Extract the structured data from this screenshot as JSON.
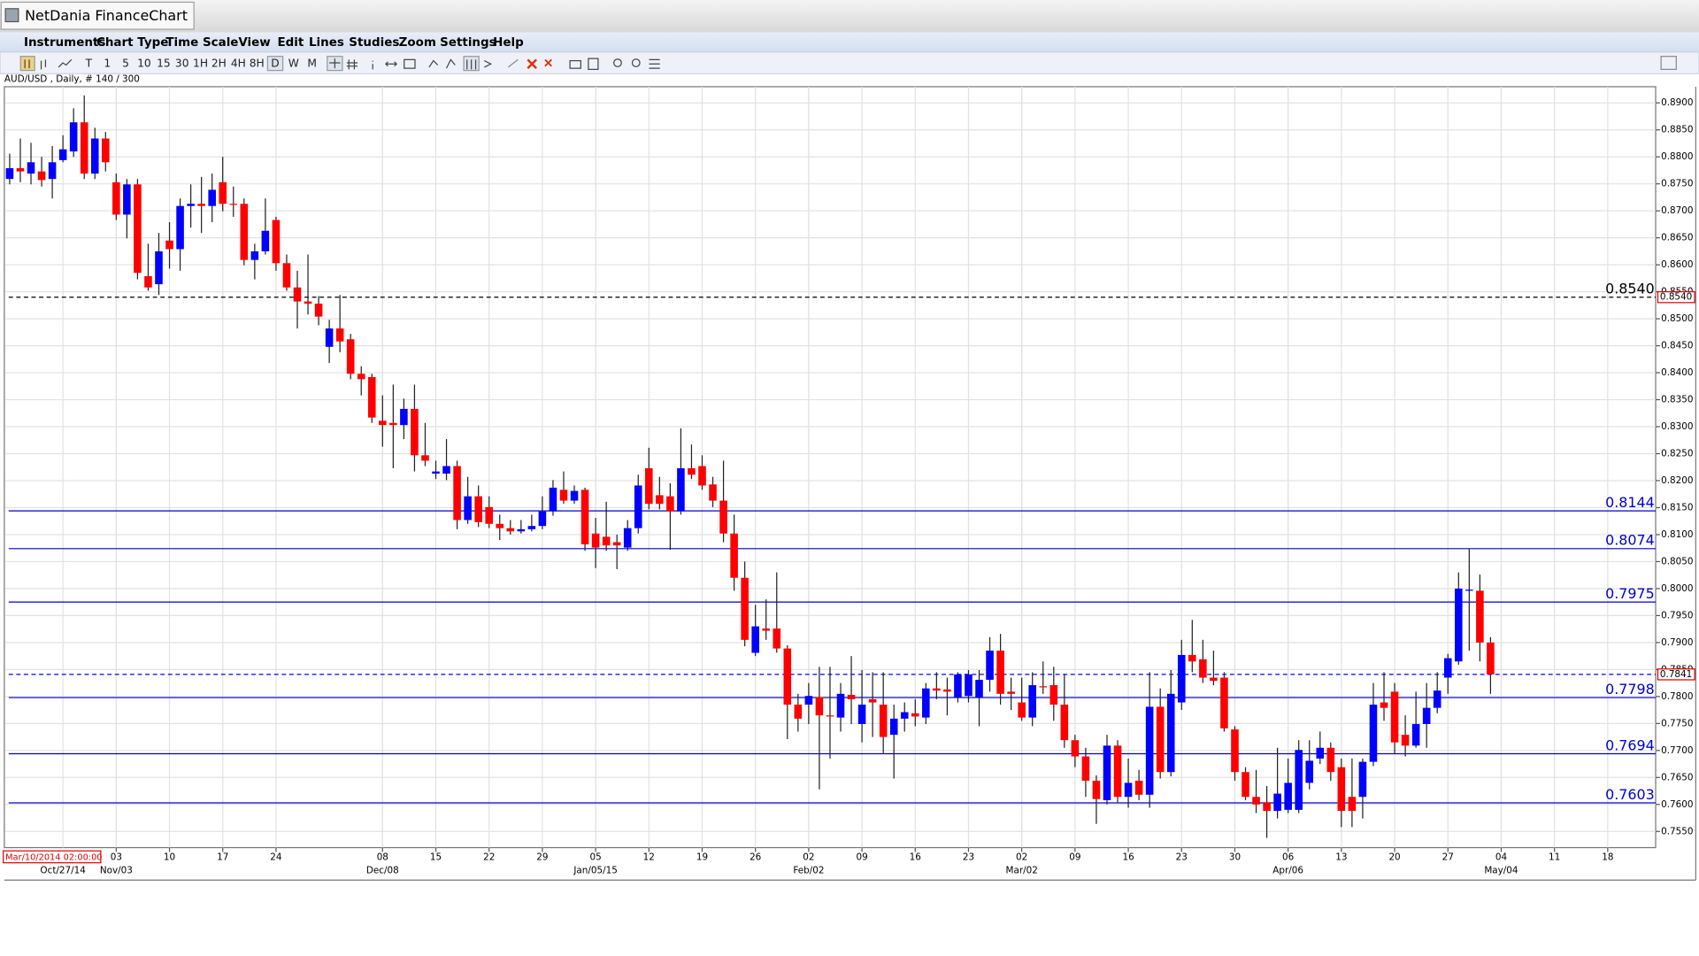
{
  "window": {
    "title": "NetDania FinanceChart"
  },
  "menu": [
    "Instruments",
    "Chart Type",
    "Time Scale",
    "View",
    "Edit",
    "Lines",
    "Studies",
    "Zoom",
    "Settings",
    "Help"
  ],
  "toolbar": {
    "timeframes": [
      "T",
      "1",
      "5",
      "10",
      "15",
      "30",
      "1H",
      "2H",
      "4H",
      "8H",
      "D",
      "W",
      "M"
    ]
  },
  "chart_data": {
    "type": "candlestick",
    "title": "AUD/USD , Daily, # 140 / 300",
    "cursor_label": "Mar/10/2014 02:00:00",
    "up_color": "#0000ff",
    "down_color": "#ff0000",
    "open": [
      0.8759,
      0.8779,
      0.8769,
      0.8773,
      0.8759,
      0.8794,
      0.881,
      0.8864,
      0.8769,
      0.8834,
      0.8753,
      0.8693,
      0.8749,
      0.8579,
      0.8564,
      0.8645,
      0.8629,
      0.8709,
      0.8713,
      0.8709,
      0.8753,
      0.8713,
      0.8713,
      0.8609,
      0.8625,
      0.8683,
      0.8603,
      0.8558,
      0.8532,
      0.8528,
      0.8448,
      0.8482,
      0.8462,
      0.8398,
      0.8392,
      0.8311,
      0.8307,
      0.8303,
      0.8333,
      0.8247,
      0.8213,
      0.8213,
      0.8227,
      0.8127,
      0.8171,
      0.8151,
      0.812,
      0.8112,
      0.8106,
      0.811,
      0.8116,
      0.8143,
      0.8183,
      0.8163,
      0.8183,
      0.8102,
      0.8096,
      0.8086,
      0.8076,
      0.8112,
      0.8223,
      0.8173,
      0.8171,
      0.8143,
      0.8223,
      0.8227,
      0.8193,
      0.8163,
      0.8102,
      0.802,
      0.7881,
      0.7926,
      0.7926,
      0.7889,
      0.7785,
      0.7785,
      0.7799,
      0.7765,
      0.7761,
      0.7803,
      0.7749,
      0.7795,
      0.7785,
      0.7729,
      0.7759,
      0.7769,
      0.7761,
      0.7815,
      0.7813,
      0.7799,
      0.7801,
      0.7799,
      0.7831,
      0.7885,
      0.7809,
      0.7789,
      0.7761,
      0.7819,
      0.7821,
      0.7785,
      0.7719,
      0.7689,
      0.7644,
      0.7608,
      0.7709,
      0.7614,
      0.7644,
      0.7618,
      0.7781,
      0.766,
      0.7789,
      0.7877,
      0.7869,
      0.7835,
      0.7835,
      0.7739,
      0.766,
      0.7614,
      0.7604,
      0.7588,
      0.759,
      0.759,
      0.764,
      0.7685,
      0.7705,
      0.7669,
      0.7614,
      0.7614,
      0.7679,
      0.7789,
      0.7809,
      0.7729,
      0.7709,
      0.7749,
      0.7779,
      0.7835,
      0.7865,
      0.7996,
      0.7996,
      0.79
    ],
    "high": [
      0.8806,
      0.8834,
      0.8826,
      0.88,
      0.882,
      0.884,
      0.889,
      0.8914,
      0.8854,
      0.8846,
      0.8769,
      0.8759,
      0.8759,
      0.8639,
      0.8659,
      0.8679,
      0.8723,
      0.8749,
      0.8763,
      0.8769,
      0.88,
      0.8745,
      0.8723,
      0.8639,
      0.8723,
      0.8689,
      0.8619,
      0.8589,
      0.8619,
      0.8542,
      0.8498,
      0.8544,
      0.8472,
      0.8412,
      0.8398,
      0.8358,
      0.8378,
      0.8352,
      0.8378,
      0.8307,
      0.8237,
      0.8277,
      0.8237,
      0.8207,
      0.8191,
      0.8171,
      0.8137,
      0.8127,
      0.8127,
      0.8137,
      0.8171,
      0.8201,
      0.8217,
      0.8191,
      0.8187,
      0.8131,
      0.8161,
      0.81,
      0.8127,
      0.8211,
      0.8261,
      0.8207,
      0.8195,
      0.8297,
      0.8267,
      0.8247,
      0.8207,
      0.8237,
      0.8137,
      0.805,
      0.797,
      0.798,
      0.803,
      0.7895,
      0.7805,
      0.7825,
      0.7855,
      0.7855,
      0.7825,
      0.7875,
      0.7849,
      0.7845,
      0.7845,
      0.7785,
      0.7789,
      0.7795,
      0.7825,
      0.7845,
      0.7835,
      0.7845,
      0.7849,
      0.7849,
      0.791,
      0.7916,
      0.7835,
      0.7835,
      0.7845,
      0.7865,
      0.7855,
      0.7841,
      0.7729,
      0.7705,
      0.7654,
      0.7729,
      0.7719,
      0.7685,
      0.7664,
      0.7845,
      0.7815,
      0.7849,
      0.7905,
      0.7942,
      0.7905,
      0.7885,
      0.7845,
      0.7745,
      0.7669,
      0.7664,
      0.7634,
      0.7705,
      0.7685,
      0.7719,
      0.7719,
      0.7735,
      0.7715,
      0.7685,
      0.7685,
      0.7685,
      0.7825,
      0.7845,
      0.7825,
      0.7765,
      0.7809,
      0.7825,
      0.7845,
      0.7879,
      0.803,
      0.8074,
      0.8026,
      0.791
    ],
    "low": [
      0.8749,
      0.8753,
      0.8749,
      0.8745,
      0.8723,
      0.879,
      0.88,
      0.8759,
      0.8759,
      0.8773,
      0.8683,
      0.8649,
      0.8573,
      0.8552,
      0.8544,
      0.8593,
      0.8589,
      0.8669,
      0.8659,
      0.8679,
      0.8699,
      0.8689,
      0.8599,
      0.8573,
      0.8619,
      0.8589,
      0.8552,
      0.8482,
      0.8508,
      0.8488,
      0.8418,
      0.8438,
      0.8388,
      0.8358,
      0.8307,
      0.8263,
      0.8223,
      0.8277,
      0.8217,
      0.8227,
      0.8203,
      0.8201,
      0.811,
      0.812,
      0.8114,
      0.8112,
      0.809,
      0.81,
      0.8102,
      0.8106,
      0.811,
      0.8135,
      0.8157,
      0.8157,
      0.807,
      0.8038,
      0.807,
      0.8036,
      0.807,
      0.8102,
      0.8147,
      0.8147,
      0.8072,
      0.8137,
      0.8203,
      0.8183,
      0.8151,
      0.8086,
      0.7996,
      0.7893,
      0.7875,
      0.7905,
      0.7881,
      0.7721,
      0.7735,
      0.7749,
      0.7628,
      0.7685,
      0.7735,
      0.7749,
      0.7715,
      0.7725,
      0.7695,
      0.7648,
      0.7735,
      0.7745,
      0.7749,
      0.7795,
      0.7765,
      0.7789,
      0.7789,
      0.7745,
      0.7809,
      0.7785,
      0.7775,
      0.7755,
      0.7745,
      0.7805,
      0.7755,
      0.7705,
      0.7669,
      0.7614,
      0.7564,
      0.76,
      0.7604,
      0.7594,
      0.7608,
      0.7594,
      0.7648,
      0.7652,
      0.7775,
      0.7845,
      0.7825,
      0.7821,
      0.7735,
      0.7644,
      0.7608,
      0.7584,
      0.7538,
      0.7574,
      0.7584,
      0.7584,
      0.7628,
      0.7675,
      0.7644,
      0.7558,
      0.7558,
      0.7574,
      0.7671,
      0.7755,
      0.7695,
      0.7689,
      0.7705,
      0.7705,
      0.7769,
      0.7805,
      0.7859,
      0.7885,
      0.7865,
      0.7805
    ],
    "close": [
      0.8779,
      0.8773,
      0.879,
      0.8757,
      0.879,
      0.8814,
      0.8864,
      0.8769,
      0.8834,
      0.879,
      0.8693,
      0.8749,
      0.8585,
      0.8558,
      0.8625,
      0.8629,
      0.8709,
      0.8713,
      0.8709,
      0.8739,
      0.8713,
      0.8711,
      0.8609,
      0.8625,
      0.8663,
      0.8603,
      0.8558,
      0.8532,
      0.8528,
      0.8504,
      0.8482,
      0.8458,
      0.8398,
      0.8388,
      0.8317,
      0.8303,
      0.8303,
      0.8333,
      0.8247,
      0.8237,
      0.8217,
      0.8227,
      0.8127,
      0.8171,
      0.8123,
      0.812,
      0.8112,
      0.8106,
      0.811,
      0.8116,
      0.8143,
      0.8187,
      0.8163,
      0.8181,
      0.8082,
      0.8076,
      0.808,
      0.808,
      0.8112,
      0.8191,
      0.8157,
      0.8157,
      0.8143,
      0.8223,
      0.8211,
      0.8191,
      0.8163,
      0.8102,
      0.802,
      0.7905,
      0.793,
      0.7922,
      0.7889,
      0.7785,
      0.7759,
      0.7801,
      0.7765,
      0.7763,
      0.7805,
      0.7795,
      0.7785,
      0.7789,
      0.7725,
      0.7759,
      0.7771,
      0.7763,
      0.7815,
      0.7811,
      0.7809,
      0.7841,
      0.7841,
      0.7831,
      0.7885,
      0.7805,
      0.7805,
      0.7761,
      0.7821,
      0.7817,
      0.7785,
      0.7719,
      0.7689,
      0.7644,
      0.761,
      0.7709,
      0.7614,
      0.764,
      0.7618,
      0.7781,
      0.766,
      0.7805,
      0.7877,
      0.7865,
      0.7835,
      0.7829,
      0.7741,
      0.766,
      0.7614,
      0.76,
      0.7588,
      0.762,
      0.764,
      0.7701,
      0.7681,
      0.7705,
      0.766,
      0.7588,
      0.7588,
      0.7679,
      0.7785,
      0.7779,
      0.7715,
      0.7709,
      0.7749,
      0.7779,
      0.7811,
      0.7871,
      0.8,
      0.7998,
      0.79,
      0.7841
    ],
    "xlim": [
      -0.4,
      154.5
    ],
    "xticks": [
      {
        "value": 10,
        "label": "03"
      },
      {
        "value": 15,
        "label": "10"
      },
      {
        "value": 20,
        "label": "17"
      },
      {
        "value": 25,
        "label": "24"
      },
      {
        "value": 35,
        "label": "08"
      },
      {
        "value": 40,
        "label": "15"
      },
      {
        "value": 45,
        "label": "22"
      },
      {
        "value": 50,
        "label": "29"
      },
      {
        "value": 55,
        "label": "05"
      },
      {
        "value": 60,
        "label": "12"
      },
      {
        "value": 65,
        "label": "19"
      },
      {
        "value": 70,
        "label": "26"
      },
      {
        "value": 75,
        "label": "02"
      },
      {
        "value": 80,
        "label": "09"
      },
      {
        "value": 85,
        "label": "16"
      },
      {
        "value": 90,
        "label": "23"
      },
      {
        "value": 95,
        "label": "02"
      },
      {
        "value": 100,
        "label": "09"
      },
      {
        "value": 105,
        "label": "16"
      },
      {
        "value": 110,
        "label": "23"
      },
      {
        "value": 115,
        "label": "30"
      },
      {
        "value": 120,
        "label": "06"
      },
      {
        "value": 125,
        "label": "13"
      },
      {
        "value": 130,
        "label": "20"
      },
      {
        "value": 135,
        "label": "27"
      },
      {
        "value": 140,
        "label": "04"
      },
      {
        "value": 145,
        "label": "11"
      },
      {
        "value": 150,
        "label": "18"
      }
    ],
    "xticks_major": [
      {
        "value": 5,
        "label": "Oct/27/14"
      },
      {
        "value": 10,
        "label": "Nov/03"
      },
      {
        "value": 35,
        "label": "Dec/08"
      },
      {
        "value": 55,
        "label": "Jan/05/15"
      },
      {
        "value": 75,
        "label": "Feb/02"
      },
      {
        "value": 95,
        "label": "Mar/02"
      },
      {
        "value": 120,
        "label": "Apr/06"
      },
      {
        "value": 140,
        "label": "May/04"
      }
    ],
    "ylim": [
      0.752,
      0.893
    ],
    "yticks": [
      {
        "value": 0.89,
        "label": "0.8900"
      },
      {
        "value": 0.885,
        "label": "0.8850"
      },
      {
        "value": 0.88,
        "label": "0.8800"
      },
      {
        "value": 0.875,
        "label": "0.8750"
      },
      {
        "value": 0.87,
        "label": "0.8700"
      },
      {
        "value": 0.865,
        "label": "0.8650"
      },
      {
        "value": 0.86,
        "label": "0.8600"
      },
      {
        "value": 0.855,
        "label": "0.8550"
      },
      {
        "value": 0.85,
        "label": "0.8500"
      },
      {
        "value": 0.845,
        "label": "0.8450"
      },
      {
        "value": 0.84,
        "label": "0.8400"
      },
      {
        "value": 0.835,
        "label": "0.8350"
      },
      {
        "value": 0.83,
        "label": "0.8300"
      },
      {
        "value": 0.825,
        "label": "0.8250"
      },
      {
        "value": 0.82,
        "label": "0.8200"
      },
      {
        "value": 0.815,
        "label": "0.8150"
      },
      {
        "value": 0.81,
        "label": "0.8100"
      },
      {
        "value": 0.805,
        "label": "0.8050"
      },
      {
        "value": 0.8,
        "label": "0.8000"
      },
      {
        "value": 0.795,
        "label": "0.7950"
      },
      {
        "value": 0.79,
        "label": "0.7900"
      },
      {
        "value": 0.785,
        "label": "0.7850"
      },
      {
        "value": 0.78,
        "label": "0.7800"
      },
      {
        "value": 0.775,
        "label": "0.7750"
      },
      {
        "value": 0.77,
        "label": "0.7700"
      },
      {
        "value": 0.765,
        "label": "0.7650"
      },
      {
        "value": 0.76,
        "label": "0.7600"
      },
      {
        "value": 0.755,
        "label": "0.7550"
      }
    ],
    "grid": true,
    "levels": [
      {
        "value": 0.854,
        "label": "0.8540",
        "color": "#000000",
        "style": "dashed",
        "boxed": true
      },
      {
        "value": 0.8144,
        "label": "0.8144",
        "color": "#0000cc",
        "style": "solid",
        "boxed": false
      },
      {
        "value": 0.8074,
        "label": "0.8074",
        "color": "#0000cc",
        "style": "solid",
        "boxed": false
      },
      {
        "value": 0.7975,
        "label": "0.7975",
        "color": "#0000cc",
        "style": "solid",
        "boxed": false
      },
      {
        "value": 0.7798,
        "label": "0.7798",
        "color": "#0000cc",
        "style": "solid",
        "boxed": false
      },
      {
        "value": 0.7694,
        "label": "0.7694",
        "color": "#0000cc",
        "style": "solid",
        "boxed": false
      },
      {
        "value": 0.7603,
        "label": "0.7603",
        "color": "#0000cc",
        "style": "solid",
        "boxed": false
      }
    ],
    "last_price": {
      "value": 0.7841,
      "label": "0.7841",
      "color": "#0000ff"
    }
  }
}
